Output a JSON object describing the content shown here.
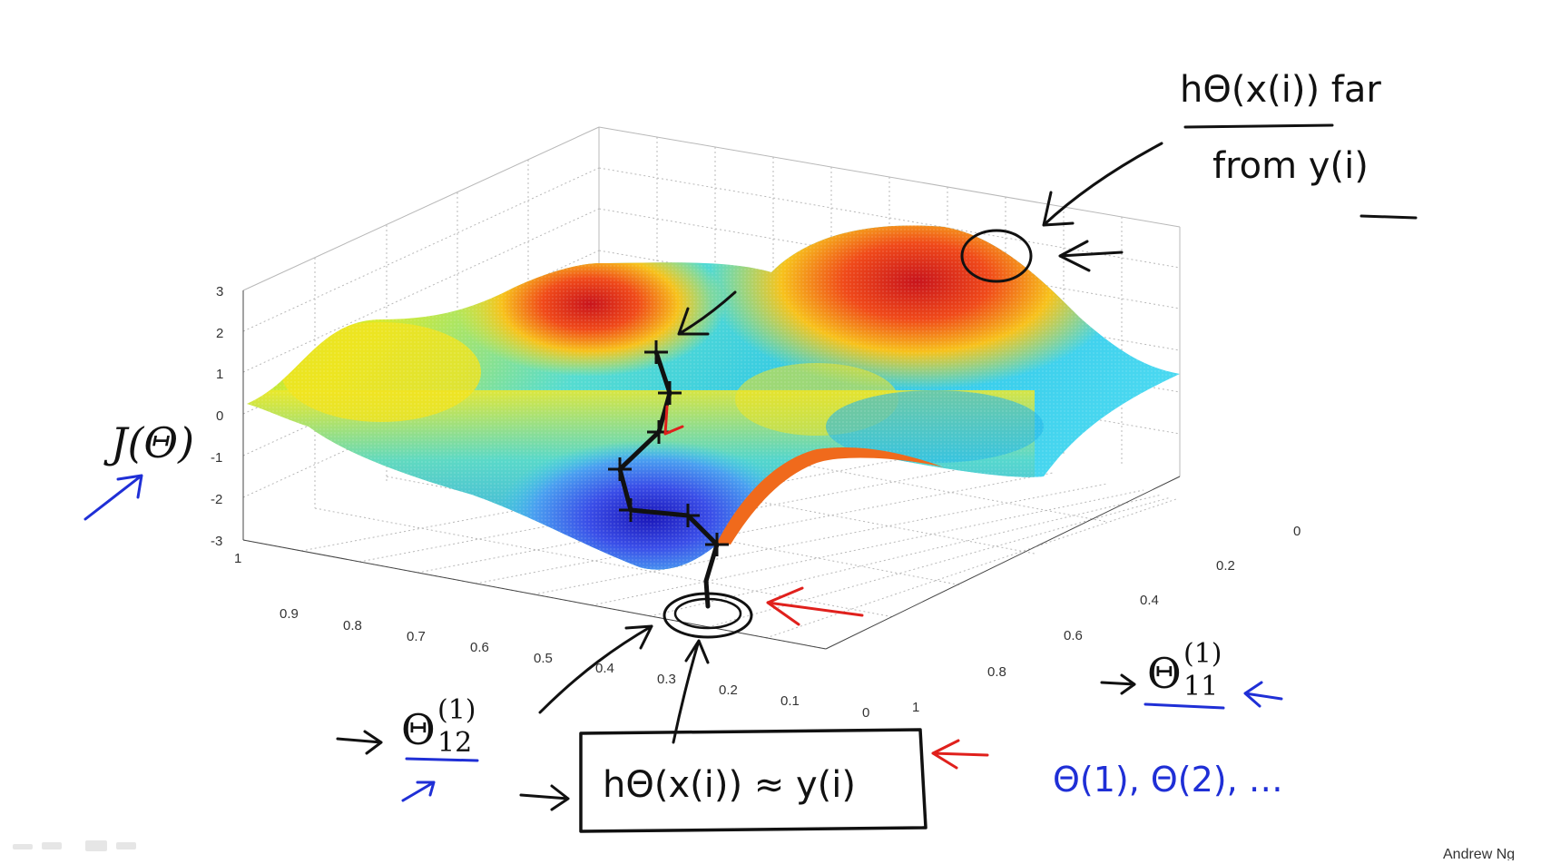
{
  "z_axis": {
    "label": "J(Θ)",
    "ticks": [
      "3",
      "2",
      "1",
      "0",
      "-1",
      "-2",
      "-3"
    ]
  },
  "x_axis": {
    "ticks": [
      "1",
      "0.9",
      "0.8",
      "0.7",
      "0.6",
      "0.5",
      "0.4",
      "0.3",
      "0.2",
      "0.1",
      "0"
    ],
    "label_symbol": "Θ",
    "label_sub": "12",
    "label_sup": "(1)"
  },
  "y_axis": {
    "ticks": [
      "0",
      "0.2",
      "0.4",
      "0.6",
      "0.8",
      "1"
    ],
    "label_symbol": "Θ",
    "label_sub": "11",
    "label_sup": "(1)"
  },
  "annotations": {
    "peak_note_numerator": "hΘ(x(i)) far",
    "peak_note_denominator": "from y(i)",
    "minimum_box": "hΘ(x(i)) ≈ y(i)",
    "theta_list": "Θ(1), Θ(2), …"
  },
  "credit": "Andrew Ng",
  "colors": {
    "ink": "#111111",
    "blue_ink": "#1f2fd6",
    "red_ink": "#e0201c"
  }
}
